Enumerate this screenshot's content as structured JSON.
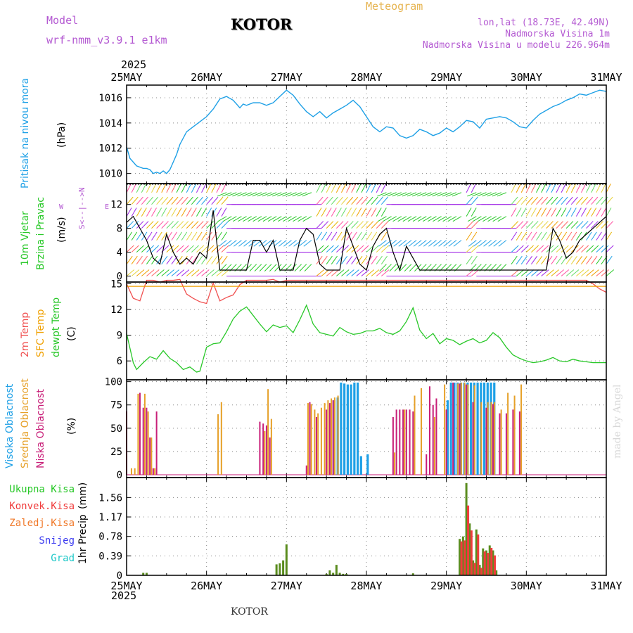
{
  "header": {
    "model_label": "Model",
    "model_name": "wrf-nmm_v3.9.1 e1km",
    "station": "KOTOR",
    "meteogram": "Meteogram",
    "lonlat": "lon,lat (18.73E, 42.49N)",
    "elevation": "Nadmorska Visina 1m",
    "model_elevation": "Nadmorska Visina u modelu 226.964m",
    "year_top": "2025",
    "year_bottom": "2025",
    "footer_station": "KOTOR",
    "credit": "made by Angel"
  },
  "colors": {
    "pressure": "#1ea0e6",
    "temp2m": "#f05050",
    "sfc": "#f0a000",
    "dewpt": "#28c828",
    "high_cloud": "#1ea0e6",
    "mid_cloud": "#e6a028",
    "low_cloud": "#c81e78",
    "total_precip": "#5a8c1e",
    "conv_precip": "#f03c3c",
    "ice_precip": "#f07828",
    "snow": "#3c3cf0",
    "hail": "#1ec8c8"
  },
  "chart_data": [
    {
      "type": "line",
      "panel": "pressure",
      "ylabel_1": "Pritisak na nivou mora",
      "ylabel_2": "(hPa)",
      "x_ticks": [
        "25MAY",
        "26MAY",
        "27MAY",
        "28MAY",
        "29MAY",
        "30MAY",
        "31MAY"
      ],
      "x_hours": [
        0,
        144
      ],
      "ylim": [
        1009.2,
        1017
      ],
      "yticks": [
        1010,
        1012,
        1014,
        1016
      ],
      "series": [
        {
          "name": "Pritisak na nivou mora",
          "x": [
            0,
            1,
            3,
            5,
            6,
            7,
            8,
            9,
            10,
            11,
            12,
            13,
            14,
            15,
            16,
            18,
            20,
            22,
            24,
            26,
            28,
            30,
            32,
            34,
            35,
            36,
            38,
            40,
            42,
            44,
            46,
            48,
            50,
            52,
            54,
            56,
            58,
            60,
            62,
            64,
            66,
            68,
            70,
            72,
            74,
            76,
            78,
            80,
            82,
            84,
            86,
            88,
            90,
            92,
            94,
            96,
            98,
            100,
            102,
            104,
            106,
            108,
            110,
            112,
            114,
            116,
            118,
            120,
            122,
            124,
            126,
            128,
            130,
            132,
            134,
            136,
            138,
            140,
            142,
            144
          ],
          "values": [
            1012.1,
            1011.2,
            1010.6,
            1010.4,
            1010.4,
            1010.3,
            1010.0,
            1010.1,
            1010.0,
            1010.2,
            1010.0,
            1010.3,
            1010.9,
            1011.5,
            1012.3,
            1013.3,
            1013.7,
            1014.1,
            1014.5,
            1015.1,
            1015.9,
            1016.1,
            1015.8,
            1015.2,
            1015.5,
            1015.4,
            1015.6,
            1015.6,
            1015.4,
            1015.6,
            1016.1,
            1016.6,
            1016.2,
            1015.5,
            1014.9,
            1014.5,
            1014.9,
            1014.4,
            1014.8,
            1015.1,
            1015.4,
            1015.8,
            1015.3,
            1014.5,
            1013.7,
            1013.3,
            1013.7,
            1013.6,
            1013.0,
            1012.8,
            1013.0,
            1013.5,
            1013.3,
            1013.0,
            1013.2,
            1013.6,
            1013.3,
            1013.7,
            1014.2,
            1014.1,
            1013.6,
            1014.3,
            1014.4,
            1014.5,
            1014.4,
            1014.1,
            1013.7,
            1013.6,
            1014.2,
            1014.7,
            1015.0,
            1015.3,
            1015.5,
            1015.8,
            1016.0,
            1016.3,
            1016.2,
            1016.4,
            1016.6,
            1016.5
          ]
        }
      ]
    },
    {
      "type": "line",
      "panel": "wind",
      "ylabel_1": "10m Vjetar",
      "ylabel_2": "Brzina i Pravac",
      "ylabel_3": "(m/s)",
      "compass": "N",
      "compass_w": "W",
      "compass_e": "E",
      "compass_s": "S",
      "ylim": [
        -1,
        15.5
      ],
      "yticks": [
        0,
        4,
        8,
        12
      ],
      "series": [
        {
          "name": "10m Vjetar",
          "x": [
            0,
            2,
            4,
            6,
            8,
            10,
            12,
            14,
            16,
            18,
            20,
            22,
            24,
            26,
            28,
            30,
            32,
            34,
            36,
            38,
            40,
            42,
            44,
            46,
            48,
            50,
            52,
            54,
            56,
            58,
            60,
            62,
            64,
            66,
            68,
            70,
            72,
            74,
            76,
            78,
            80,
            82,
            84,
            86,
            88,
            90,
            92,
            94,
            96,
            98,
            100,
            102,
            104,
            106,
            108,
            110,
            112,
            114,
            116,
            118,
            120,
            122,
            124,
            126,
            128,
            130,
            132,
            134,
            136,
            138,
            140,
            142,
            144
          ],
          "values": [
            9,
            10,
            8,
            6,
            3,
            2,
            7,
            4,
            2,
            3,
            2,
            4,
            3,
            11,
            1,
            1,
            1,
            1,
            1,
            6,
            6,
            4,
            6,
            1,
            1,
            1,
            6,
            8,
            7,
            2,
            1,
            1,
            1,
            8,
            5,
            2,
            1,
            5,
            7,
            8,
            4,
            1,
            5,
            3,
            1,
            1,
            1,
            1,
            1,
            1,
            1,
            1,
            1,
            1,
            1,
            1,
            1,
            1,
            1,
            1,
            1,
            1,
            1,
            1,
            8,
            6,
            3,
            4,
            6,
            7,
            8,
            9,
            10
          ]
        }
      ]
    },
    {
      "type": "line",
      "panel": "temperature",
      "ylabel_1": "2m Temp",
      "ylabel_2": "SFC Temp",
      "ylabel_3": "dewpt Temp",
      "ylabel_4": "(C)",
      "ylim": [
        3.8,
        15.2
      ],
      "yticks": [
        6,
        9,
        12,
        15
      ],
      "series": [
        {
          "name": "2m Temp",
          "x": [
            0,
            2,
            4,
            6,
            8,
            10,
            12,
            14,
            16,
            18,
            20,
            22,
            24,
            26,
            28,
            30,
            32,
            34,
            36,
            38,
            40,
            42,
            44,
            46,
            48,
            50,
            52,
            54,
            56,
            58,
            60,
            62,
            64,
            66,
            68,
            70,
            72,
            74,
            76,
            78,
            80,
            82,
            84,
            86,
            88,
            90,
            92,
            94,
            96,
            98,
            100,
            102,
            104,
            106,
            108,
            110,
            112,
            114,
            116,
            118,
            120,
            122,
            124,
            126,
            128,
            130,
            132,
            134,
            136,
            138,
            140,
            142,
            144
          ],
          "values": [
            15.0,
            13.3,
            13.0,
            15.4,
            15.4,
            15.2,
            15.4,
            15.4,
            15.5,
            13.8,
            13.3,
            12.9,
            12.7,
            15.1,
            13.0,
            13.4,
            13.7,
            14.9,
            15.4,
            15.4,
            15.4,
            15.4,
            15.5,
            15.2,
            15.4,
            15.4,
            15.4,
            15.4,
            15.4,
            15.4,
            15.4,
            15.4,
            15.4,
            15.4,
            15.4,
            15.4,
            15.4,
            15.4,
            15.4,
            15.4,
            15.4,
            15.4,
            15.4,
            15.4,
            15.4,
            15.4,
            15.4,
            15.4,
            15.4,
            15.4,
            15.4,
            15.4,
            15.4,
            15.4,
            15.4,
            15.4,
            15.4,
            15.4,
            15.4,
            15.4,
            15.4,
            15.4,
            15.4,
            15.4,
            15.4,
            15.4,
            15.4,
            15.4,
            15.4,
            15.4,
            15.0,
            14.4,
            14.0
          ]
        },
        {
          "name": "SFC Temp",
          "x": [
            0,
            144
          ],
          "values": [
            14.7,
            14.7
          ]
        },
        {
          "name": "dewpt Temp",
          "x": [
            0,
            2,
            3,
            5,
            7,
            9,
            11,
            13,
            15,
            17,
            19,
            21,
            22,
            24,
            26,
            28,
            30,
            32,
            34,
            36,
            38,
            40,
            42,
            44,
            46,
            48,
            50,
            52,
            54,
            56,
            58,
            60,
            62,
            64,
            66,
            68,
            70,
            72,
            74,
            76,
            78,
            80,
            82,
            84,
            86,
            88,
            90,
            92,
            94,
            96,
            98,
            100,
            102,
            104,
            106,
            108,
            110,
            112,
            114,
            116,
            118,
            120,
            122,
            124,
            126,
            128,
            130,
            132,
            134,
            136,
            138,
            140,
            142,
            144
          ],
          "values": [
            9.2,
            5.8,
            5.0,
            5.8,
            6.5,
            6.2,
            7.2,
            6.3,
            5.8,
            5.0,
            5.3,
            4.7,
            4.8,
            7.6,
            8.0,
            8.1,
            9.4,
            10.9,
            11.8,
            12.3,
            11.3,
            10.3,
            9.4,
            10.2,
            9.9,
            10.1,
            9.3,
            10.8,
            12.5,
            10.3,
            9.3,
            9.1,
            8.9,
            9.9,
            9.4,
            9.1,
            9.2,
            9.5,
            9.5,
            9.8,
            9.3,
            9.1,
            9.5,
            10.6,
            12.2,
            9.6,
            8.6,
            9.2,
            8.0,
            8.6,
            8.4,
            7.9,
            8.3,
            8.6,
            8.1,
            8.4,
            9.3,
            8.7,
            7.6,
            6.7,
            6.3,
            6.0,
            5.8,
            5.9,
            6.1,
            6.4,
            6.0,
            5.9,
            6.2,
            6.0,
            5.9,
            5.8,
            5.8,
            5.8
          ]
        }
      ]
    },
    {
      "type": "bar",
      "panel": "clouds",
      "ylabel_1": "Visoka Oblacnost",
      "ylabel_2": "Srednja Oblacnost",
      "ylabel_3": "Niska Oblacnost",
      "ylabel_4": "(%)",
      "ylim": [
        -3,
        102
      ],
      "yticks": [
        0,
        25,
        50,
        75,
        100
      ],
      "series": [
        {
          "name": "Visoka Oblacnost",
          "x": [
            62,
            63,
            64,
            65,
            66,
            67,
            68,
            69,
            70,
            72,
            96,
            97,
            98,
            99,
            100,
            101,
            102,
            103,
            104,
            105,
            106,
            107,
            108,
            109,
            110
          ],
          "values": [
            80,
            83,
            99,
            98,
            97,
            97,
            99,
            99,
            20,
            22,
            80,
            99,
            99,
            99,
            99,
            99,
            99,
            99,
            99,
            99,
            99,
            99,
            99,
            99,
            99
          ]
        },
        {
          "name": "Srednja Oblacnost",
          "x": [
            1,
            2,
            3,
            5,
            6,
            7,
            8,
            27,
            28,
            41,
            42,
            43,
            54,
            55,
            56,
            57,
            58,
            59,
            60,
            61,
            62,
            63,
            80,
            83,
            86,
            88,
            92,
            95,
            99,
            100,
            101,
            102,
            104,
            106,
            108,
            109,
            110,
            112,
            114,
            116,
            118
          ],
          "values": [
            7,
            7,
            87,
            87,
            68,
            40,
            7,
            65,
            78,
            47,
            92,
            60,
            77,
            76,
            70,
            66,
            72,
            77,
            80,
            82,
            83,
            85,
            24,
            70,
            85,
            93,
            62,
            97,
            98,
            99,
            99,
            97,
            96,
            78,
            78,
            78,
            78,
            70,
            88,
            85,
            97
          ]
        },
        {
          "name": "Niska Oblacnost",
          "x": [
            0,
            4,
            5,
            6,
            7,
            8,
            9,
            40,
            41,
            42,
            43,
            54,
            55,
            57,
            60,
            61,
            62,
            80,
            81,
            82,
            83,
            84,
            85,
            86,
            90,
            91,
            92,
            93,
            96,
            98,
            100,
            102,
            104,
            108,
            110,
            112,
            114,
            116,
            118
          ],
          "values": [
            68,
            88,
            72,
            72,
            40,
            7,
            68,
            57,
            55,
            53,
            40,
            10,
            78,
            62,
            70,
            77,
            80,
            62,
            70,
            70,
            70,
            70,
            70,
            68,
            22,
            95,
            75,
            82,
            70,
            99,
            98,
            97,
            78,
            72,
            76,
            66,
            66,
            70,
            68
          ]
        }
      ]
    },
    {
      "type": "bar",
      "panel": "precipitation",
      "ylabel_1": "1hr Precip",
      "ylabel_2": "(mm)",
      "legend": [
        "Ukupna Kisa",
        "Konvek.Kisa",
        "Zaledj.Kisa",
        "Snijeg",
        "Grad"
      ],
      "ylim": [
        0,
        1.96
      ],
      "yticks": [
        "0",
        "0.39",
        "0.78",
        "1.17",
        "1.56"
      ],
      "ytick_values": [
        0,
        0.39,
        0.78,
        1.17,
        1.56
      ],
      "series": [
        {
          "name": "Ukupna Kisa",
          "x": [
            5,
            6,
            45,
            46,
            47,
            48,
            60,
            61,
            62,
            63,
            64,
            65,
            66,
            86,
            100,
            101,
            102,
            103,
            104,
            105,
            106,
            107,
            108,
            109,
            110,
            111
          ],
          "values": [
            0.05,
            0.05,
            0.22,
            0.24,
            0.3,
            0.62,
            0.03,
            0.1,
            0.05,
            0.21,
            0.05,
            0.03,
            0.03,
            0.04,
            0.73,
            0.78,
            1.85,
            1.04,
            0.3,
            0.92,
            0.21,
            0.54,
            0.5,
            0.6,
            0.5,
            0.1
          ]
        },
        {
          "name": "Konvek.Kisa",
          "x": [
            100,
            101,
            102,
            103,
            104,
            105,
            106,
            107,
            108,
            109,
            110
          ],
          "values": [
            0.68,
            0.7,
            1.4,
            0.9,
            0.25,
            0.82,
            0.15,
            0.48,
            0.45,
            0.55,
            0.4
          ]
        }
      ]
    }
  ],
  "x_axis": {
    "ticks_top": [
      "25MAY",
      "26MAY",
      "27MAY",
      "28MAY",
      "29MAY",
      "30MAY",
      "31MAY"
    ],
    "ticks_bottom": [
      "25MAY",
      "26MAY",
      "27MAY",
      "28MAY",
      "29MAY",
      "30MAY",
      "31MAY"
    ]
  }
}
